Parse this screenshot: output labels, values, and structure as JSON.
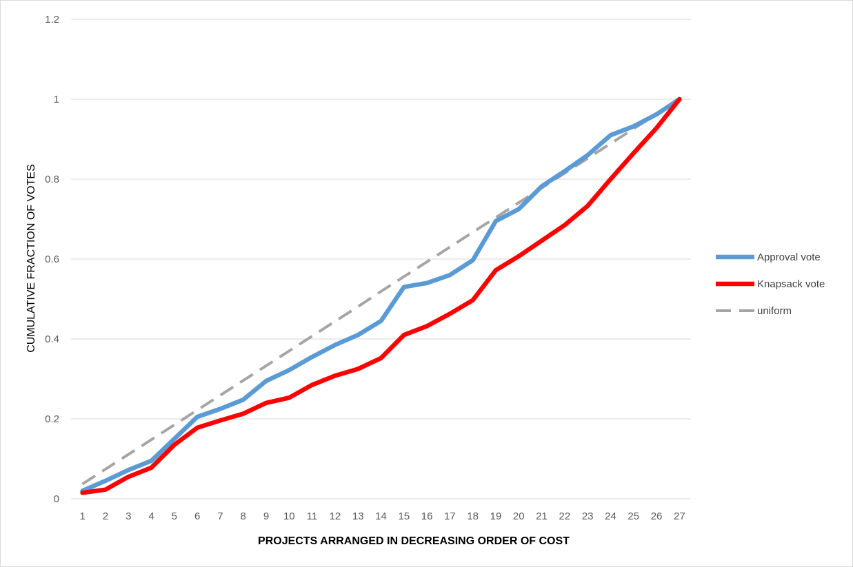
{
  "chart_data": {
    "type": "line",
    "xlabel": "PROJECTS ARRANGED IN DECREASING ORDER OF COST",
    "ylabel": "CUMULATIVE FRACTION OF VOTES",
    "x": [
      1,
      2,
      3,
      4,
      5,
      6,
      7,
      8,
      9,
      10,
      11,
      12,
      13,
      14,
      15,
      16,
      17,
      18,
      19,
      20,
      21,
      22,
      23,
      24,
      25,
      26,
      27
    ],
    "ylim": [
      0,
      1.2
    ],
    "yticks": [
      0,
      0.2,
      0.4,
      0.6,
      0.8,
      1,
      1.2
    ],
    "grid": true,
    "legend_position": "right",
    "series": [
      {
        "name": "Approval vote",
        "color": "#5b9bd5",
        "dash": "solid",
        "values": [
          0.02,
          0.045,
          0.072,
          0.095,
          0.15,
          0.205,
          0.225,
          0.248,
          0.295,
          0.322,
          0.355,
          0.385,
          0.41,
          0.445,
          0.53,
          0.54,
          0.56,
          0.597,
          0.695,
          0.725,
          0.782,
          0.82,
          0.86,
          0.91,
          0.932,
          0.962,
          1.0
        ]
      },
      {
        "name": "Knapsack vote",
        "color": "#ff0000",
        "dash": "solid",
        "values": [
          0.015,
          0.023,
          0.055,
          0.078,
          0.135,
          0.178,
          0.196,
          0.213,
          0.24,
          0.253,
          0.285,
          0.308,
          0.325,
          0.352,
          0.41,
          0.432,
          0.463,
          0.497,
          0.572,
          0.607,
          0.646,
          0.685,
          0.733,
          0.8,
          0.865,
          0.928,
          1.0
        ]
      },
      {
        "name": "uniform",
        "color": "#a5a5a5",
        "dash": "dashed",
        "values": [
          0.037,
          0.074,
          0.111,
          0.148,
          0.185,
          0.222,
          0.259,
          0.296,
          0.333,
          0.37,
          0.407,
          0.444,
          0.481,
          0.519,
          0.556,
          0.593,
          0.63,
          0.667,
          0.704,
          0.741,
          0.778,
          0.815,
          0.852,
          0.889,
          0.926,
          0.963,
          1.0
        ]
      }
    ]
  }
}
